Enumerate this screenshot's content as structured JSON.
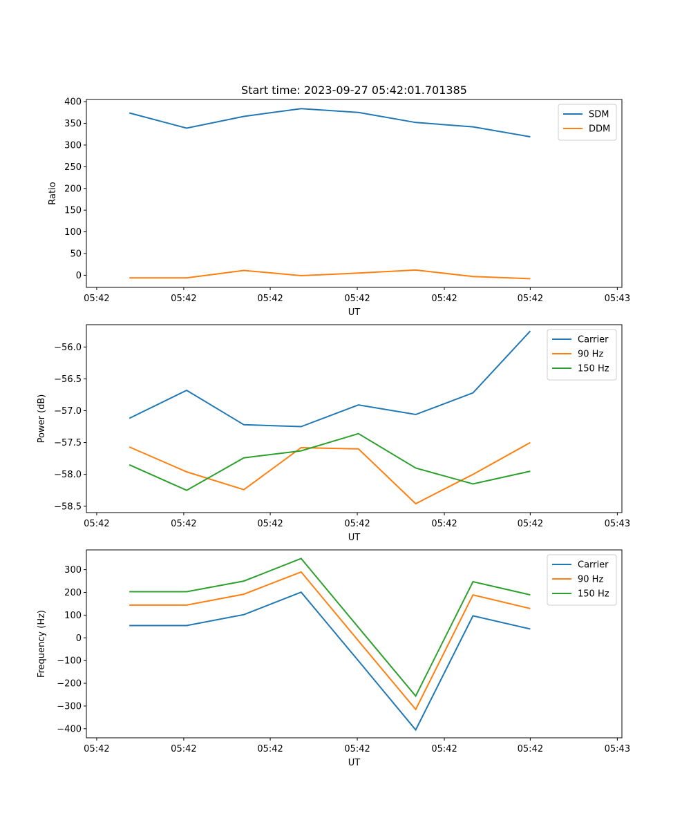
{
  "figure_title": "Start time: 2023-09-27 05:42:01.701385",
  "chart_data": [
    {
      "type": "line",
      "title": "Start time: 2023-09-27 05:42:01.701385",
      "xlabel": "UT",
      "ylabel": "Ratio",
      "x": [
        0,
        1,
        2,
        3,
        4,
        5,
        6,
        7
      ],
      "xlim": [
        -0.75,
        8.6
      ],
      "xticks": [
        -0.57,
        0.95,
        2.46,
        3.98,
        5.5,
        7.0,
        8.52
      ],
      "xtick_labels": [
        "05:42",
        "05:42",
        "05:42",
        "05:42",
        "05:42",
        "05:42",
        "05:43"
      ],
      "ylim": [
        -28,
        405
      ],
      "yticks": [
        0,
        50,
        100,
        150,
        200,
        250,
        300,
        350,
        400
      ],
      "ytick_labels": [
        "0",
        "50",
        "100",
        "150",
        "200",
        "250",
        "300",
        "350",
        "400"
      ],
      "legend": "top-right",
      "series": [
        {
          "name": "SDM",
          "color": "#1f77b4",
          "values": [
            374,
            339,
            366,
            384,
            375,
            352,
            342,
            319
          ]
        },
        {
          "name": "DDM",
          "color": "#ff7f0e",
          "values": [
            -6,
            -6,
            11,
            -1,
            5,
            12,
            -3,
            -8
          ]
        }
      ]
    },
    {
      "type": "line",
      "xlabel": "UT",
      "ylabel": "Power (dB)",
      "x": [
        0,
        1,
        2,
        3,
        4,
        5,
        6,
        7
      ],
      "xlim": [
        -0.75,
        8.6
      ],
      "xticks": [
        -0.57,
        0.95,
        2.46,
        3.98,
        5.5,
        7.0,
        8.52
      ],
      "xtick_labels": [
        "05:42",
        "05:42",
        "05:42",
        "05:42",
        "05:42",
        "05:42",
        "05:43"
      ],
      "ylim": [
        -58.6,
        -55.65
      ],
      "yticks": [
        -58.5,
        -58.0,
        -57.5,
        -57.0,
        -56.5,
        -56.0
      ],
      "ytick_labels": [
        "−58.5",
        "−58.0",
        "−57.5",
        "−57.0",
        "−56.5",
        "−56.0"
      ],
      "legend": "top-right",
      "series": [
        {
          "name": "Carrier",
          "color": "#1f77b4",
          "values": [
            -57.12,
            -56.68,
            -57.22,
            -57.25,
            -56.91,
            -57.06,
            -56.72,
            -55.75
          ]
        },
        {
          "name": "90 Hz",
          "color": "#ff7f0e",
          "values": [
            -57.57,
            -57.96,
            -58.24,
            -57.58,
            -57.6,
            -58.46,
            -58.0,
            -57.5
          ]
        },
        {
          "name": "150 Hz",
          "color": "#2ca02c",
          "values": [
            -57.85,
            -58.25,
            -57.74,
            -57.63,
            -57.36,
            -57.9,
            -58.15,
            -57.95
          ]
        }
      ]
    },
    {
      "type": "line",
      "xlabel": "UT",
      "ylabel": "Frequency (Hz)",
      "x": [
        0,
        1,
        2,
        3,
        4,
        5,
        6,
        7
      ],
      "xlim": [
        -0.75,
        8.6
      ],
      "xticks": [
        -0.57,
        0.95,
        2.46,
        3.98,
        5.5,
        7.0,
        8.52
      ],
      "xtick_labels": [
        "05:42",
        "05:42",
        "05:42",
        "05:42",
        "05:42",
        "05:42",
        "05:43"
      ],
      "ylim": [
        -440,
        387
      ],
      "yticks": [
        -400,
        -300,
        -200,
        -100,
        0,
        100,
        200,
        300
      ],
      "ytick_labels": [
        "−400",
        "−300",
        "−200",
        "−100",
        "0",
        "100",
        "200",
        "300"
      ],
      "legend": "top-right",
      "series": [
        {
          "name": "Carrier",
          "color": "#1f77b4",
          "values": [
            54,
            54,
            102,
            201,
            -101,
            -405,
            97,
            39
          ]
        },
        {
          "name": "90 Hz",
          "color": "#ff7f0e",
          "values": [
            144,
            144,
            192,
            290,
            -13,
            -315,
            189,
            129
          ]
        },
        {
          "name": "150 Hz",
          "color": "#2ca02c",
          "values": [
            203,
            203,
            250,
            349,
            46,
            -256,
            247,
            189
          ]
        }
      ]
    }
  ]
}
